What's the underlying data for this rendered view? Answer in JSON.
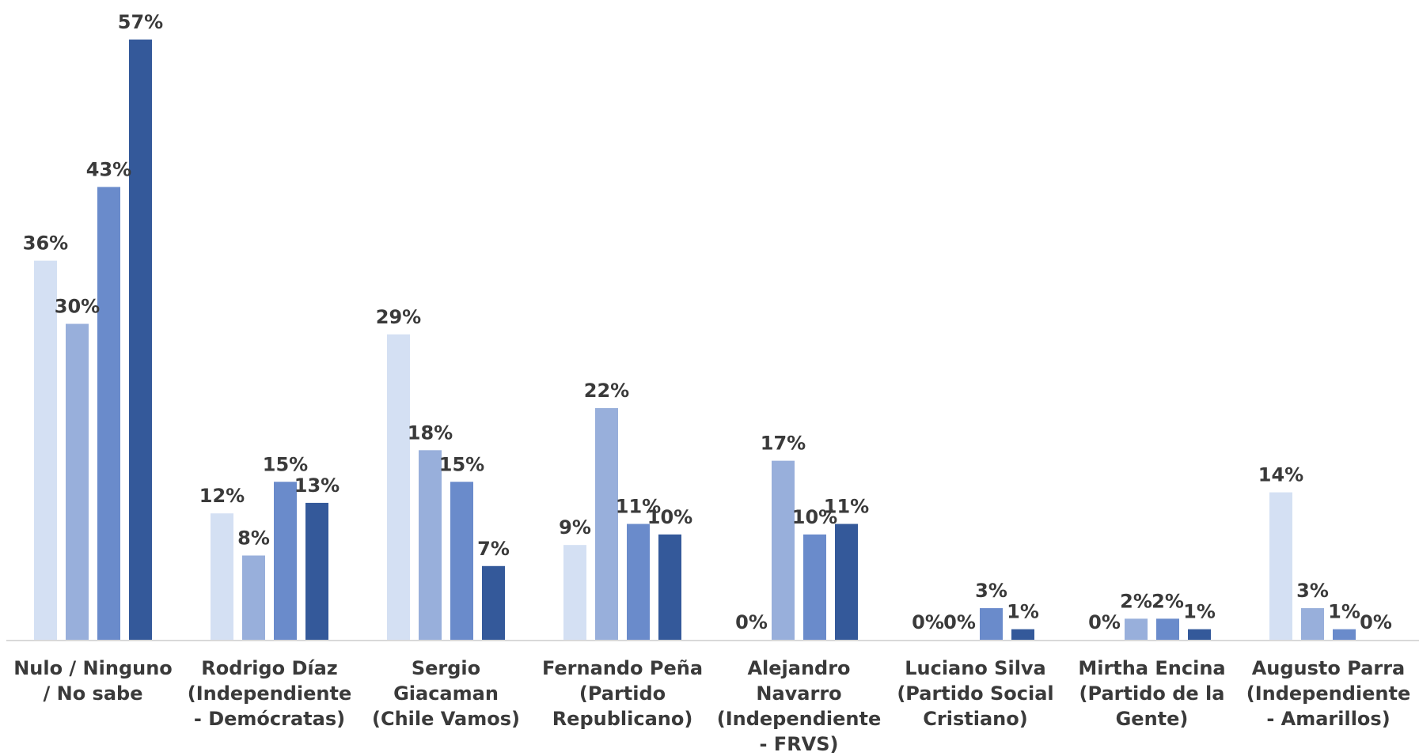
{
  "chart_data": {
    "type": "bar",
    "categories": [
      [
        "Nulo / Ninguno",
        "/ No sabe"
      ],
      [
        "Rodrigo Díaz",
        "(Independiente",
        "- Demócratas)"
      ],
      [
        "Sergio",
        "Giacaman",
        "(Chile Vamos)"
      ],
      [
        "Fernando Peña",
        "(Partido",
        "Republicano)"
      ],
      [
        "Alejandro",
        "Navarro",
        "(Independiente",
        "- FRVS)"
      ],
      [
        "Luciano Silva",
        "(Partido Social",
        "Cristiano)"
      ],
      [
        "Mirtha Encina",
        "(Partido de la",
        "Gente)"
      ],
      [
        "Augusto Parra",
        "(Independiente",
        "- Amarillos)"
      ]
    ],
    "series": [
      {
        "color": "#d4e0f3",
        "values": [
          36,
          12,
          29,
          9,
          0,
          0,
          0,
          14
        ],
        "labels": [
          "36%",
          "12%",
          "29%",
          "9%",
          "0%",
          "0%",
          "0%",
          "14%"
        ]
      },
      {
        "color": "#98afdb",
        "values": [
          30,
          8,
          18,
          22,
          17,
          0,
          2,
          3
        ],
        "labels": [
          "30%",
          "8%",
          "18%",
          "22%",
          "17%",
          "0%",
          "2%",
          "3%"
        ]
      },
      {
        "color": "#6a8bcb",
        "values": [
          43,
          15,
          15,
          11,
          10,
          3,
          2,
          1
        ],
        "labels": [
          "43%",
          "15%",
          "15%",
          "11%",
          "10%",
          "3%",
          "2%",
          "1%"
        ]
      },
      {
        "color": "#34599a",
        "values": [
          57,
          13,
          7,
          10,
          11,
          1,
          1,
          0
        ],
        "labels": [
          "57%",
          "13%",
          "7%",
          "10%",
          "11%",
          "1%",
          "1%",
          "0%"
        ]
      }
    ],
    "ylim": [
      0,
      57
    ],
    "grid": false,
    "legend": "none",
    "axis_color": "#d9d9d9",
    "label_color": "#3a3a3a"
  }
}
